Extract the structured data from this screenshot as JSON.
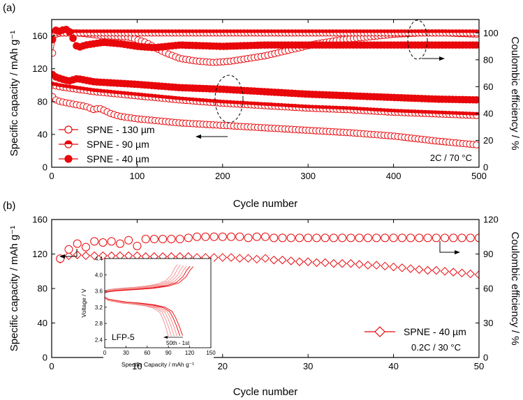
{
  "colors": {
    "series": "#e8070b",
    "series_light": "#f28a8a",
    "axis": "#000000"
  },
  "chart_data": [
    {
      "type": "scatter",
      "panel_label": "(a)",
      "xlabel": "Cycle number",
      "ylabel_left": "Specific capacity / mAh g⁻¹",
      "ylabel_right": "Coulombic efficiency / %",
      "xlim": [
        0,
        500
      ],
      "ylim_left": [
        0,
        180
      ],
      "ylim_right": [
        0,
        110
      ],
      "x_ticks": [
        "0",
        "100",
        "200",
        "300",
        "400",
        "500"
      ],
      "y_left_ticks": [
        "0",
        "40",
        "80",
        "120",
        "160"
      ],
      "y_right_ticks": [
        "0",
        "20",
        "40",
        "60",
        "80",
        "100"
      ],
      "condition_text": "2C / 70 °C",
      "series": [
        {
          "name": "SPNE - 130 µm",
          "marker": "open-circle",
          "capacity": {
            "x": [
              1,
              5,
              10,
              20,
              30,
              40,
              50,
              55,
              60,
              70,
              80,
              100,
              120,
              150,
              200,
              250,
              300,
              350,
              400,
              450,
              500
            ],
            "y": [
              86,
              82,
              80,
              78,
              76,
              74,
              70,
              72,
              70,
              65,
              62,
              59,
              57,
              54,
              51,
              48,
              45,
              42,
              38,
              32,
              27
            ]
          },
          "efficiency": {
            "x": [
              1,
              5,
              10,
              30,
              60,
              90,
              110,
              130,
              150,
              170,
              190,
              210,
              230,
              250,
              270,
              290,
              310,
              340,
              370,
              400,
              430,
              460,
              500
            ],
            "y": [
              85,
              99,
              100,
              100,
              98,
              97,
              93,
              86,
              81,
              79,
              78,
              79,
              81,
              83,
              86,
              89,
              92,
              95,
              97,
              99,
              100,
              100,
              99
            ]
          }
        },
        {
          "name": "SPNE - 90 µm",
          "marker": "half-filled-circle",
          "capacity": {
            "x": [
              1,
              10,
              50,
              100,
              150,
              200,
              250,
              300,
              350,
              400,
              450,
              500
            ],
            "y": [
              100,
              98,
              92,
              87,
              82,
              78,
              75,
              72,
              70,
              67,
              65,
              63
            ]
          },
          "efficiency": {
            "x": [
              1,
              10,
              50,
              100,
              150,
              200,
              250,
              300,
              350,
              400,
              450,
              500
            ],
            "y": [
              100,
              100,
              100,
              100,
              100,
              100,
              100,
              100,
              100,
              100,
              100,
              100
            ]
          }
        },
        {
          "name": "SPNE - 40 µm",
          "marker": "filled-circle",
          "capacity": {
            "x": [
              1,
              5,
              10,
              20,
              30,
              50,
              100,
              150,
              200,
              250,
              300,
              350,
              400,
              450,
              500
            ],
            "y": [
              113,
              110,
              108,
              105,
              108,
              104,
              101,
              97,
              95,
              92,
              89,
              87,
              85,
              83,
              82
            ]
          },
          "efficiency": {
            "x": [
              1,
              5,
              10,
              15,
              20,
              25,
              30,
              40,
              60,
              80,
              100,
              120,
              150,
              200,
              250,
              300,
              350,
              400,
              450,
              500
            ],
            "y": [
              95,
              102,
              101,
              103,
              102,
              96,
              89,
              91,
              93,
              92,
              90,
              89,
              91,
              90,
              91,
              91,
              91,
              91,
              91,
              91
            ]
          }
        }
      ]
    },
    {
      "type": "scatter",
      "panel_label": "(b)",
      "xlabel": "Cycle number",
      "ylabel_left": "Specific capacity / mAh g⁻¹",
      "ylabel_right": "Coulombic efficiency / %",
      "xlim": [
        0,
        50
      ],
      "ylim_left": [
        0,
        160
      ],
      "ylim_right": [
        0,
        120
      ],
      "x_ticks": [
        "0",
        "10",
        "20",
        "30",
        "40",
        "50"
      ],
      "y_left_ticks": [
        "0",
        "40",
        "80",
        "120",
        "160"
      ],
      "y_right_ticks": [
        "0",
        "30",
        "60",
        "90",
        "120"
      ],
      "condition_text": "0.2C / 30 °C",
      "series": [
        {
          "name": "SPNE - 40 µm",
          "capacity": {
            "marker": "open-diamond",
            "x": [
              1,
              2,
              3,
              4,
              5,
              6,
              7,
              8,
              9,
              10,
              11,
              12,
              13,
              14,
              15,
              16,
              17,
              18,
              19,
              20,
              21,
              22,
              23,
              24,
              25,
              26,
              27,
              28,
              29,
              30,
              31,
              32,
              33,
              34,
              35,
              36,
              37,
              38,
              39,
              40,
              41,
              42,
              43,
              44,
              45,
              46,
              47,
              48,
              49,
              50
            ],
            "y": [
              114,
              118,
              119,
              118,
              118,
              118,
              118,
              118,
              118,
              118,
              117,
              117,
              117,
              117,
              117,
              117,
              116,
              116,
              116,
              116,
              116,
              115,
              115,
              114,
              115,
              113,
              113,
              112,
              111,
              111,
              110,
              110,
              109,
              109,
              109,
              108,
              107,
              107,
              106,
              105,
              104,
              103,
              102,
              101,
              101,
              100,
              99,
              98,
              97,
              96
            ]
          },
          "efficiency": {
            "marker": "open-circle",
            "x": [
              1,
              2,
              3,
              4,
              5,
              6,
              7,
              8,
              9,
              10,
              11,
              12,
              13,
              14,
              15,
              16,
              17,
              18,
              19,
              20,
              21,
              22,
              23,
              24,
              25,
              26,
              27,
              28,
              29,
              30,
              31,
              32,
              33,
              34,
              35,
              36,
              37,
              38,
              39,
              40,
              41,
              42,
              43,
              44,
              45,
              46,
              47,
              48,
              49,
              50
            ],
            "y": [
              86,
              94,
              99,
              96,
              101,
              100,
              101,
              99,
              102,
              97,
              103,
              103,
              103,
              103,
              103,
              104,
              105,
              105,
              105,
              105,
              105,
              105,
              104,
              105,
              105,
              104,
              104,
              104,
              104,
              104,
              104,
              104,
              104,
              104,
              104,
              104,
              104,
              104,
              104,
              104,
              104,
              104,
              104,
              104,
              104,
              104,
              104,
              104,
              104,
              104
            ]
          }
        }
      ],
      "inset": {
        "label": "LFP-5",
        "xlabel": "Specific Capacity / mAh g⁻¹",
        "ylabel": "Voltage / V",
        "xlim": [
          0,
          150
        ],
        "ylim": [
          2.2,
          4.4
        ],
        "x_ticks": [
          "0",
          "30",
          "60",
          "90",
          "120",
          "150"
        ],
        "y_ticks": [
          "2.4",
          "2.8",
          "3.2",
          "3.6",
          "4.0",
          "4.4"
        ],
        "annotation": "50th - 1st",
        "curves": {
          "charge": {
            "x": [
              0,
              5,
              15,
              30,
              50,
              70,
              90,
              105,
              115,
              120,
              125
            ],
            "y": [
              3.55,
              3.58,
              3.6,
              3.62,
              3.64,
              3.67,
              3.72,
              3.8,
              3.95,
              4.1,
              4.2
            ]
          },
          "discharge": {
            "x": [
              0,
              5,
              15,
              30,
              50,
              70,
              85,
              95,
              100,
              105,
              110
            ],
            "y": [
              3.45,
              3.4,
              3.37,
              3.33,
              3.3,
              3.26,
              3.2,
              3.1,
              2.95,
              2.75,
              2.5
            ]
          }
        }
      }
    }
  ]
}
